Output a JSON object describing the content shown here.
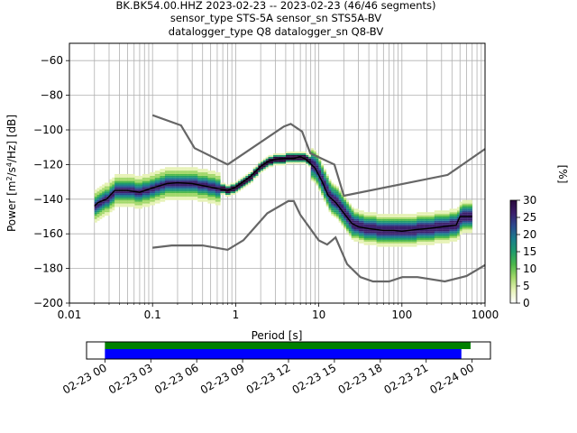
{
  "chart_data": {
    "type": "heatmap",
    "title_lines": [
      "BK.BK54.00.HHZ   2023-02-23 -- 2023-02-23  (46/46 segments)",
      "sensor_type STS-5A sensor_sn STS5A-BV",
      "datalogger_type Q8 datalogger_sn Q8-BV"
    ],
    "xlabel": "Period [s]",
    "ylabel_main": "Power [m",
    "ylabel_sup1": "2",
    "ylabel_mid": "/s",
    "ylabel_sup2": "4",
    "ylabel_end": "/Hz] [dB]",
    "x_scale": "log",
    "xlim": [
      0.01,
      1000
    ],
    "ylim": [
      -200,
      -50
    ],
    "x_ticks": [
      {
        "value": 0.01,
        "label": "0.01"
      },
      {
        "value": 0.1,
        "label": "0.1"
      },
      {
        "value": 1,
        "label": "1"
      },
      {
        "value": 10,
        "label": "10"
      },
      {
        "value": 100,
        "label": "100"
      },
      {
        "value": 1000,
        "label": "1000"
      }
    ],
    "y_ticks": [
      {
        "value": -60,
        "label": "−60"
      },
      {
        "value": -80,
        "label": "−80"
      },
      {
        "value": -100,
        "label": "−100"
      },
      {
        "value": -120,
        "label": "−120"
      },
      {
        "value": -140,
        "label": "−140"
      },
      {
        "value": -160,
        "label": "−160"
      },
      {
        "value": -180,
        "label": "−180"
      },
      {
        "value": -200,
        "label": "−200"
      }
    ],
    "grid": true,
    "noise_model_high": [
      [
        0.1,
        -91.5
      ],
      [
        0.22,
        -97.4
      ],
      [
        0.32,
        -110.5
      ],
      [
        0.8,
        -120
      ],
      [
        3.8,
        -98
      ],
      [
        4.6,
        -96.5
      ],
      [
        6.3,
        -101
      ],
      [
        7.9,
        -113.5
      ],
      [
        15.4,
        -120
      ],
      [
        20,
        -138
      ],
      [
        354.8,
        -126
      ],
      [
        1000,
        -111
      ]
    ],
    "noise_model_low": [
      [
        0.1,
        -168
      ],
      [
        0.17,
        -166.7
      ],
      [
        0.4,
        -166.7
      ],
      [
        0.8,
        -169.2
      ],
      [
        1.24,
        -163.7
      ],
      [
        2.4,
        -148.1
      ],
      [
        4.3,
        -141.1
      ],
      [
        5.0,
        -141.1
      ],
      [
        6.0,
        -149.0
      ],
      [
        10.0,
        -163.8
      ],
      [
        12.6,
        -166.2
      ],
      [
        15.9,
        -162.1
      ],
      [
        21.9,
        -177.5
      ],
      [
        31.6,
        -185
      ],
      [
        45,
        -187.5
      ],
      [
        70,
        -187.5
      ],
      [
        101,
        -185
      ],
      [
        154,
        -185
      ],
      [
        328,
        -187.5
      ],
      [
        600,
        -184.4
      ],
      [
        1000,
        -178
      ]
    ],
    "mean_curve": [
      [
        0.02,
        -144
      ],
      [
        0.022,
        -142
      ],
      [
        0.028,
        -140
      ],
      [
        0.035,
        -135
      ],
      [
        0.05,
        -135
      ],
      [
        0.07,
        -136
      ],
      [
        0.1,
        -133.5
      ],
      [
        0.15,
        -131
      ],
      [
        0.2,
        -130.5
      ],
      [
        0.3,
        -131
      ],
      [
        0.5,
        -133
      ],
      [
        0.8,
        -135
      ],
      [
        1.0,
        -133
      ],
      [
        1.5,
        -127
      ],
      [
        2.0,
        -121
      ],
      [
        2.5,
        -118
      ],
      [
        3.0,
        -117
      ],
      [
        4.0,
        -116.5
      ],
      [
        5.0,
        -116.5
      ],
      [
        6.0,
        -115.5
      ],
      [
        7.0,
        -117
      ],
      [
        9.0,
        -122
      ],
      [
        11.0,
        -130
      ],
      [
        13.0,
        -138
      ],
      [
        16.0,
        -142
      ],
      [
        20.0,
        -148
      ],
      [
        25.0,
        -154
      ],
      [
        30.0,
        -156
      ],
      [
        40.0,
        -157
      ],
      [
        60.0,
        -158
      ],
      [
        80.0,
        -158
      ],
      [
        100.0,
        -158.5
      ],
      [
        150.0,
        -157.5
      ],
      [
        200.0,
        -157
      ],
      [
        300.0,
        -156
      ],
      [
        450.0,
        -155
      ],
      [
        500.0,
        -150
      ],
      [
        700.0,
        -150
      ]
    ],
    "colorbar": {
      "label": "[%]",
      "range": [
        0,
        30
      ],
      "ticks": [
        "0",
        "5",
        "10",
        "15",
        "20",
        "25",
        "30"
      ],
      "colors": [
        "#ffffff",
        "#e6f2b5",
        "#a3d86a",
        "#4cb84a",
        "#1e9b6b",
        "#1b7d8c",
        "#2c4a8f",
        "#3b1e6b",
        "#2a0a3d"
      ]
    },
    "timeline": {
      "start": "2023-02-23 00:00",
      "end": "2023-02-24 00:00",
      "xlim_hours": [
        -1.2,
        25.2
      ],
      "green_bar_hours": [
        0,
        23.9
      ],
      "blue_bar_hours": [
        0,
        23.3
      ],
      "green_color": "#008000",
      "blue_color": "#0000ff",
      "tick_labels": [
        "02-23 00",
        "02-23 03",
        "02-23 06",
        "02-23 09",
        "02-23 12",
        "02-23 15",
        "02-23 18",
        "02-23 21",
        "02-24 00"
      ]
    }
  }
}
